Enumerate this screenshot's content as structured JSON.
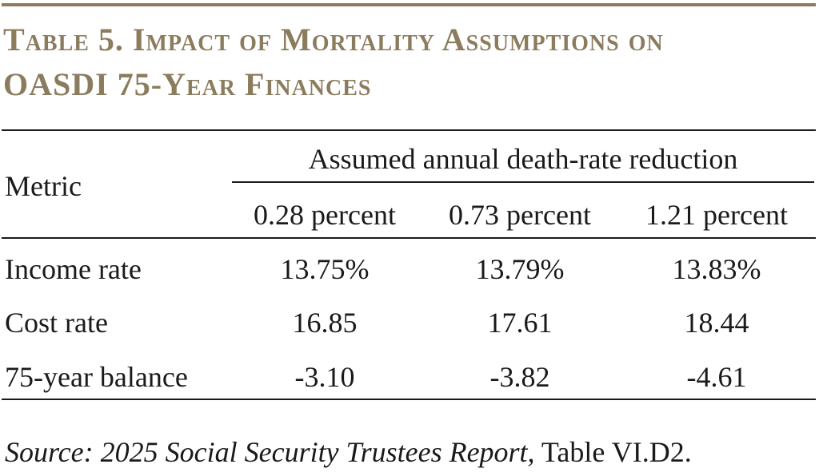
{
  "title": {
    "line1": "Table 5. Impact of Mortality Assumptions on",
    "line2": "OASDI 75-Year Finances"
  },
  "table": {
    "metric_header": "Metric",
    "group_header": "Assumed annual death-rate reduction",
    "columns": [
      "0.28 percent",
      "0.73 percent",
      "1.21 percent"
    ],
    "rows": [
      {
        "label": "Income rate",
        "values": [
          "13.75%",
          "13.79%",
          "13.83%"
        ]
      },
      {
        "label": "Cost rate",
        "values": [
          "16.85",
          "17.61",
          "18.44"
        ]
      },
      {
        "label": "75-year balance",
        "values": [
          "-3.10",
          "-3.82",
          "-4.61"
        ]
      }
    ]
  },
  "source": {
    "prefix": "Source:",
    "report": "2025 Social Security Trustees Report,",
    "suffix": "Table VI.D2."
  }
}
